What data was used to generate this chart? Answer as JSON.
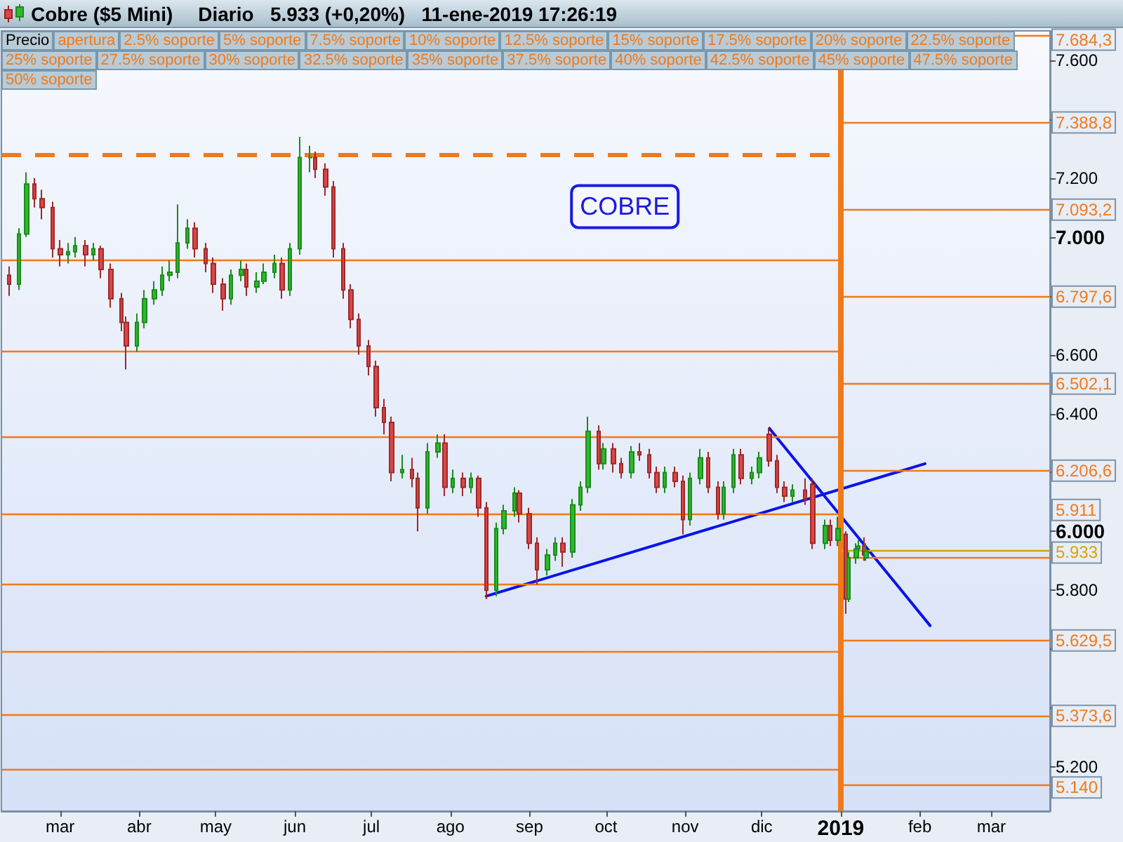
{
  "chart_data": {
    "type": "candlestick",
    "title": "Cobre ($5 Mini)",
    "subtitle": "Diario   5.933 (+0,20%)   11-ene-2019 17:26:19",
    "x": [
      "2018-02-09",
      "2018-02-13",
      "2018-02-16",
      "2018-02-19",
      "2018-02-22",
      "2018-02-26",
      "2018-03-01",
      "2018-03-04",
      "2018-03-07",
      "2018-03-11",
      "2018-03-14",
      "2018-03-17",
      "2018-03-21",
      "2018-03-25",
      "2018-03-27",
      "2018-03-31",
      "2018-04-03",
      "2018-04-07",
      "2018-04-10",
      "2018-04-13",
      "2018-04-16",
      "2018-04-20",
      "2018-04-23",
      "2018-04-27",
      "2018-04-30",
      "2018-05-04",
      "2018-05-07",
      "2018-05-11",
      "2018-05-13",
      "2018-05-17",
      "2018-05-20",
      "2018-05-24",
      "2018-05-27",
      "2018-05-30",
      "2018-06-03",
      "2018-06-07",
      "2018-06-09",
      "2018-06-13",
      "2018-06-16",
      "2018-06-20",
      "2018-06-23",
      "2018-06-26",
      "2018-06-30",
      "2018-07-03",
      "2018-07-06",
      "2018-07-09",
      "2018-07-13",
      "2018-07-17",
      "2018-07-19",
      "2018-07-23",
      "2018-07-27",
      "2018-07-30",
      "2018-08-02",
      "2018-08-06",
      "2018-08-09",
      "2018-08-12",
      "2018-08-15",
      "2018-08-19",
      "2018-08-22",
      "2018-08-26",
      "2018-08-28",
      "2018-09-01",
      "2018-09-04",
      "2018-09-08",
      "2018-09-11",
      "2018-09-14",
      "2018-09-18",
      "2018-09-21",
      "2018-09-24",
      "2018-09-28",
      "2018-09-30",
      "2018-10-04",
      "2018-10-07",
      "2018-10-11",
      "2018-10-14",
      "2018-10-18",
      "2018-10-21",
      "2018-10-24",
      "2018-10-28",
      "2018-10-31",
      "2018-11-03",
      "2018-11-07",
      "2018-11-10",
      "2018-11-14",
      "2018-11-16",
      "2018-11-20",
      "2018-11-23",
      "2018-11-27",
      "2018-11-30",
      "2018-12-04",
      "2018-12-07",
      "2018-12-10",
      "2018-12-13",
      "2018-12-18",
      "2018-12-21",
      "2018-12-26",
      "2018-12-28",
      "2018-12-31",
      "2019-01-03",
      "2019-01-04",
      "2019-01-07",
      "2019-01-08",
      "2019-01-10",
      "2019-01-11"
    ],
    "ohlc": [
      [
        6.87,
        6.9,
        6.8,
        6.84
      ],
      [
        6.84,
        7.03,
        6.82,
        7.01
      ],
      [
        7.01,
        7.22,
        7.0,
        7.18
      ],
      [
        7.18,
        7.2,
        7.1,
        7.13
      ],
      [
        7.13,
        7.16,
        7.06,
        7.1
      ],
      [
        7.1,
        7.12,
        6.93,
        6.96
      ],
      [
        6.96,
        6.99,
        6.9,
        6.94
      ],
      [
        6.94,
        6.98,
        6.91,
        6.95
      ],
      [
        6.95,
        7.0,
        6.93,
        6.97
      ],
      [
        6.97,
        6.99,
        6.9,
        6.94
      ],
      [
        6.94,
        6.98,
        6.92,
        6.96
      ],
      [
        6.96,
        6.97,
        6.86,
        6.89
      ],
      [
        6.89,
        6.91,
        6.76,
        6.79
      ],
      [
        6.79,
        6.81,
        6.68,
        6.71
      ],
      [
        6.71,
        6.73,
        6.55,
        6.63
      ],
      [
        6.63,
        6.74,
        6.61,
        6.71
      ],
      [
        6.71,
        6.82,
        6.69,
        6.79
      ],
      [
        6.79,
        6.85,
        6.77,
        6.82
      ],
      [
        6.82,
        6.9,
        6.8,
        6.87
      ],
      [
        6.87,
        6.92,
        6.85,
        6.88
      ],
      [
        6.88,
        7.11,
        6.86,
        6.98
      ],
      [
        6.98,
        7.06,
        6.96,
        7.03
      ],
      [
        7.03,
        7.05,
        6.93,
        6.96
      ],
      [
        6.96,
        6.98,
        6.88,
        6.91
      ],
      [
        6.91,
        6.93,
        6.81,
        6.84
      ],
      [
        6.84,
        6.86,
        6.75,
        6.79
      ],
      [
        6.79,
        6.89,
        6.77,
        6.87
      ],
      [
        6.87,
        6.92,
        6.85,
        6.89
      ],
      [
        6.89,
        6.91,
        6.8,
        6.83
      ],
      [
        6.83,
        6.88,
        6.81,
        6.85
      ],
      [
        6.85,
        6.91,
        6.84,
        6.88
      ],
      [
        6.88,
        6.94,
        6.86,
        6.91
      ],
      [
        6.91,
        6.93,
        6.79,
        6.82
      ],
      [
        6.82,
        6.98,
        6.8,
        6.96
      ],
      [
        6.96,
        7.34,
        6.94,
        7.27
      ],
      [
        7.27,
        7.31,
        7.22,
        7.27
      ],
      [
        7.27,
        7.29,
        7.2,
        7.23
      ],
      [
        7.23,
        7.25,
        7.14,
        7.17
      ],
      [
        7.17,
        7.19,
        6.93,
        6.96
      ],
      [
        6.96,
        6.98,
        6.79,
        6.82
      ],
      [
        6.82,
        6.84,
        6.69,
        6.72
      ],
      [
        6.72,
        6.74,
        6.6,
        6.63
      ],
      [
        6.63,
        6.65,
        6.53,
        6.56
      ],
      [
        6.56,
        6.58,
        6.39,
        6.42
      ],
      [
        6.42,
        6.45,
        6.33,
        6.37
      ],
      [
        6.37,
        6.39,
        6.17,
        6.2
      ],
      [
        6.2,
        6.26,
        6.18,
        6.21
      ],
      [
        6.21,
        6.25,
        6.15,
        6.18
      ],
      [
        6.18,
        6.2,
        6.0,
        6.08
      ],
      [
        6.08,
        6.3,
        6.06,
        6.27
      ],
      [
        6.27,
        6.33,
        6.25,
        6.3
      ],
      [
        6.3,
        6.33,
        6.12,
        6.15
      ],
      [
        6.15,
        6.21,
        6.13,
        6.18
      ],
      [
        6.18,
        6.2,
        6.12,
        6.15
      ],
      [
        6.15,
        6.2,
        6.13,
        6.18
      ],
      [
        6.18,
        6.19,
        6.05,
        6.08
      ],
      [
        6.08,
        6.1,
        5.77,
        5.8
      ],
      [
        5.8,
        6.03,
        5.78,
        6.01
      ],
      [
        6.01,
        6.09,
        5.99,
        6.07
      ],
      [
        6.07,
        6.15,
        6.05,
        6.13
      ],
      [
        6.13,
        6.14,
        6.03,
        6.06
      ],
      [
        6.06,
        6.08,
        5.94,
        5.96
      ],
      [
        5.96,
        5.98,
        5.82,
        5.87
      ],
      [
        5.87,
        5.94,
        5.85,
        5.92
      ],
      [
        5.92,
        5.98,
        5.9,
        5.96
      ],
      [
        5.96,
        5.98,
        5.88,
        5.93
      ],
      [
        5.93,
        6.11,
        5.91,
        6.09
      ],
      [
        6.09,
        6.17,
        6.07,
        6.15
      ],
      [
        6.15,
        6.39,
        6.13,
        6.34
      ],
      [
        6.34,
        6.36,
        6.21,
        6.23
      ],
      [
        6.23,
        6.3,
        6.21,
        6.28
      ],
      [
        6.28,
        6.3,
        6.2,
        6.23
      ],
      [
        6.23,
        6.25,
        6.18,
        6.2
      ],
      [
        6.2,
        6.29,
        6.18,
        6.27
      ],
      [
        6.27,
        6.3,
        6.24,
        6.26
      ],
      [
        6.26,
        6.28,
        6.18,
        6.2
      ],
      [
        6.2,
        6.22,
        6.13,
        6.15
      ],
      [
        6.15,
        6.22,
        6.13,
        6.2
      ],
      [
        6.2,
        6.22,
        6.15,
        6.17
      ],
      [
        6.17,
        6.19,
        5.99,
        6.04
      ],
      [
        6.04,
        6.2,
        6.02,
        6.18
      ],
      [
        6.18,
        6.28,
        6.16,
        6.25
      ],
      [
        6.25,
        6.27,
        6.13,
        6.15
      ],
      [
        6.15,
        6.17,
        6.04,
        6.06
      ],
      [
        6.06,
        6.17,
        6.04,
        6.15
      ],
      [
        6.15,
        6.28,
        6.13,
        6.26
      ],
      [
        6.26,
        6.28,
        6.16,
        6.18
      ],
      [
        6.18,
        6.22,
        6.16,
        6.2
      ],
      [
        6.2,
        6.27,
        6.18,
        6.25
      ],
      [
        6.33,
        6.35,
        6.22,
        6.24
      ],
      [
        6.24,
        6.26,
        6.13,
        6.15
      ],
      [
        6.15,
        6.17,
        6.1,
        6.12
      ],
      [
        6.12,
        6.16,
        6.1,
        6.14
      ],
      [
        6.14,
        6.18,
        6.09,
        6.11
      ],
      [
        6.16,
        6.18,
        5.94,
        5.96
      ],
      [
        5.96,
        6.04,
        5.94,
        6.02
      ],
      [
        6.02,
        6.04,
        5.95,
        5.97
      ],
      [
        5.97,
        6.05,
        5.95,
        6.01
      ],
      [
        5.99,
        6.0,
        5.72,
        5.77
      ],
      [
        5.77,
        5.93,
        5.76,
        5.91
      ],
      [
        5.91,
        5.96,
        5.89,
        5.94
      ],
      [
        5.94,
        5.97,
        5.92,
        5.95
      ],
      [
        5.95,
        5.98,
        5.9,
        5.92
      ],
      [
        5.91,
        5.96,
        5.9,
        5.933
      ]
    ],
    "series": [
      {
        "type": "line",
        "color": "#0a14e6",
        "x": [
          "2018-08-15",
          "2019-02-03"
        ],
        "values": [
          5.78,
          6.23
        ]
      },
      {
        "type": "line",
        "color": "#0a14e6",
        "x": [
          "2018-12-04",
          "2019-02-05"
        ],
        "values": [
          6.35,
          5.68
        ]
      }
    ],
    "xlim": [
      "2018-02-06",
      "2019-03-24"
    ],
    "xticks": [
      {
        "value": "2018-03-01",
        "label": "mar"
      },
      {
        "value": "2018-04-01",
        "label": "abr"
      },
      {
        "value": "2018-05-01",
        "label": "may"
      },
      {
        "value": "2018-06-01",
        "label": "jun"
      },
      {
        "value": "2018-07-01",
        "label": "jul"
      },
      {
        "value": "2018-08-01",
        "label": "ago"
      },
      {
        "value": "2018-09-01",
        "label": "sep"
      },
      {
        "value": "2018-10-01",
        "label": "oct"
      },
      {
        "value": "2018-11-01",
        "label": "nov"
      },
      {
        "value": "2018-12-01",
        "label": "dic"
      },
      {
        "value": "2019-01-01",
        "label": "2019"
      },
      {
        "value": "2019-02-01",
        "label": "feb"
      },
      {
        "value": "2019-03-01",
        "label": "mar"
      }
    ],
    "ylim": [
      5.05,
      7.7
    ],
    "yticks": [
      {
        "value": 5.2,
        "label": "5.200"
      },
      {
        "value": 5.4,
        "label": null
      },
      {
        "value": 5.6,
        "label": null
      },
      {
        "value": 5.8,
        "label": "5.800"
      },
      {
        "value": 6.0,
        "label": "6.000"
      },
      {
        "value": 6.2,
        "label": null
      },
      {
        "value": 6.4,
        "label": "6.400"
      },
      {
        "value": 6.6,
        "label": "6.600"
      },
      {
        "value": 6.8,
        "label": null
      },
      {
        "value": 7.0,
        "label": "7.000"
      },
      {
        "value": 7.2,
        "label": "7.200"
      },
      {
        "value": 7.4,
        "label": null
      },
      {
        "value": 7.6,
        "label": "7.600"
      }
    ],
    "ref_lines": [
      {
        "axis": "x",
        "value": "2019-01-01",
        "color": "#f07a1a"
      },
      {
        "axis": "y",
        "value": 7.28,
        "color": "#f07a1a",
        "line_style": "dashed"
      },
      {
        "axis": "y",
        "value": 6.92,
        "color": "#f07a1a"
      },
      {
        "axis": "y",
        "value": 6.61,
        "color": "#f07a1a"
      },
      {
        "axis": "y",
        "value": 6.32,
        "color": "#f07a1a"
      },
      {
        "axis": "y",
        "value": 6.06,
        "color": "#f07a1a"
      },
      {
        "axis": "y",
        "value": 5.82,
        "color": "#f07a1a"
      },
      {
        "axis": "y",
        "value": 5.59,
        "color": "#f07a1a"
      },
      {
        "axis": "y",
        "value": 5.38,
        "color": "#f07a1a"
      },
      {
        "axis": "y",
        "value": 5.19,
        "color": "#f07a1a"
      },
      {
        "axis": "y",
        "value": 7.6843,
        "label": "7.684,3",
        "color": "#f07a1a"
      },
      {
        "axis": "y",
        "value": 7.3888,
        "label": "7.388,8",
        "color": "#f07a1a"
      },
      {
        "axis": "y",
        "value": 7.0932,
        "label": "7.093,2",
        "color": "#f07a1a"
      },
      {
        "axis": "y",
        "value": 6.7976,
        "label": "6.797,6",
        "color": "#f07a1a"
      },
      {
        "axis": "y",
        "value": 6.5021,
        "label": "6.502,1",
        "color": "#f07a1a"
      },
      {
        "axis": "y",
        "value": 6.2066,
        "label": "6.206,6",
        "color": "#f07a1a"
      },
      {
        "axis": "y",
        "value": 5.933,
        "label": "5.933",
        "color": "#d9a300"
      },
      {
        "axis": "y",
        "value": 5.911,
        "label": "5.911",
        "color": "#f07a1a"
      },
      {
        "axis": "y",
        "value": 5.6295,
        "label": "5.629,5",
        "color": "#f07a1a"
      },
      {
        "axis": "y",
        "value": 5.3736,
        "label": "5.373,6",
        "color": "#f07a1a"
      },
      {
        "axis": "y",
        "value": 5.14,
        "label": "5.140",
        "color": "#f07a1a"
      }
    ],
    "annotations": [
      "COBRE",
      "Precio",
      "apertura",
      "2.5% soporte",
      "5% soporte",
      "7.5% soporte",
      "10% soporte",
      "12.5% soporte",
      "15% soporte",
      "17.5% soporte",
      "20% soporte",
      "22.5% soporte",
      "25% soporte",
      "27.5% soporte",
      "30% soporte",
      "32.5% soporte",
      "35% soporte",
      "37.5% soporte",
      "40% soporte",
      "42.5% soporte",
      "45% soporte",
      "47.5% soporte",
      "50% soporte"
    ]
  }
}
